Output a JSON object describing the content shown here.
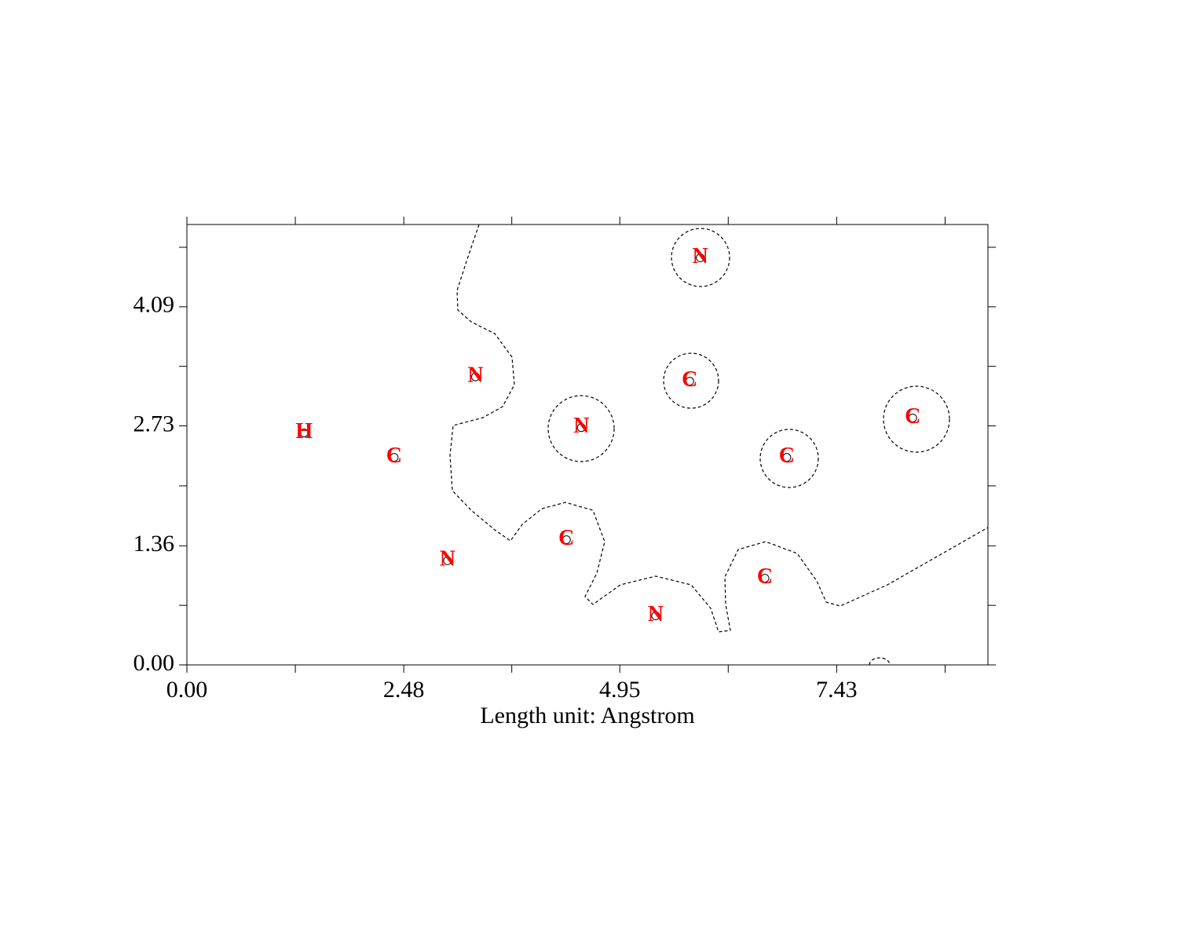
{
  "chart_data": {
    "type": "scatter",
    "xlabel": "Length unit: Angstrom",
    "x": [
      1.34,
      2.37,
      3.3,
      2.98,
      4.34,
      4.51,
      5.36,
      5.75,
      5.87,
      6.86,
      6.61,
      8.3
    ],
    "values": [
      2.65,
      2.37,
      3.29,
      1.19,
      1.43,
      2.71,
      0.56,
      3.24,
      4.65,
      2.37,
      0.99,
      2.82
    ],
    "labels": [
      "H",
      "C",
      "N",
      "N",
      "C",
      "N",
      "N",
      "C",
      "N",
      "C",
      "C",
      "C"
    ],
    "color": "#ff0000",
    "xlim": [
      0,
      9.16
    ],
    "ylim": [
      0,
      5.03
    ],
    "xticks": [
      {
        "value": 0,
        "label": "0.00"
      },
      2.48,
      4.95,
      7.43
    ],
    "yticks": [
      {
        "value": 0,
        "label": "0.00"
      },
      1.36,
      2.73,
      4.09
    ]
  }
}
